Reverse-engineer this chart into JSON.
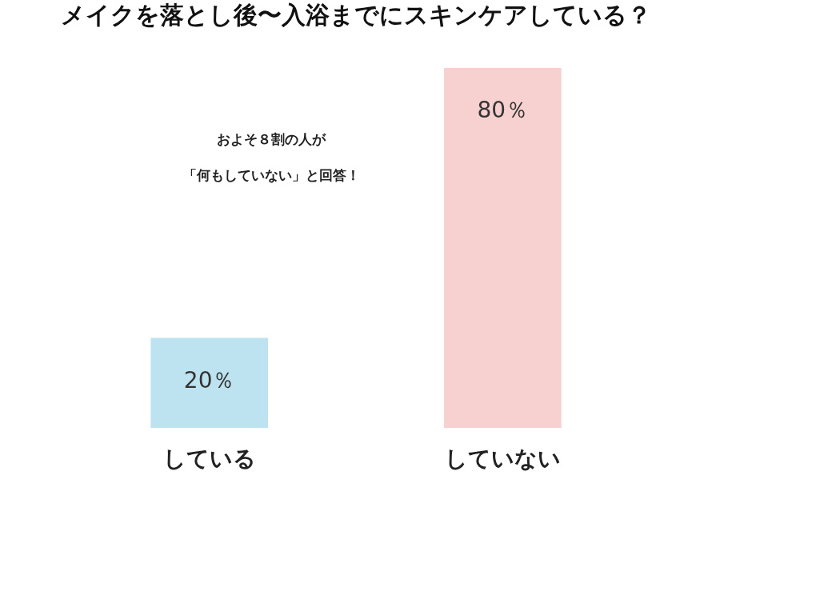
{
  "chart_data": {
    "type": "bar",
    "title": "メイクを落とし後〜入浴までにスキンケアしている？",
    "categories": [
      "している",
      "していない"
    ],
    "values": [
      20,
      80
    ],
    "colors": [
      "#bde3f0",
      "#f7d0d0"
    ],
    "value_labels": [
      "20％",
      "80％"
    ],
    "annotations": [
      "およそ８割の人が",
      "「何もしていない」と回答！"
    ],
    "grid": false
  }
}
